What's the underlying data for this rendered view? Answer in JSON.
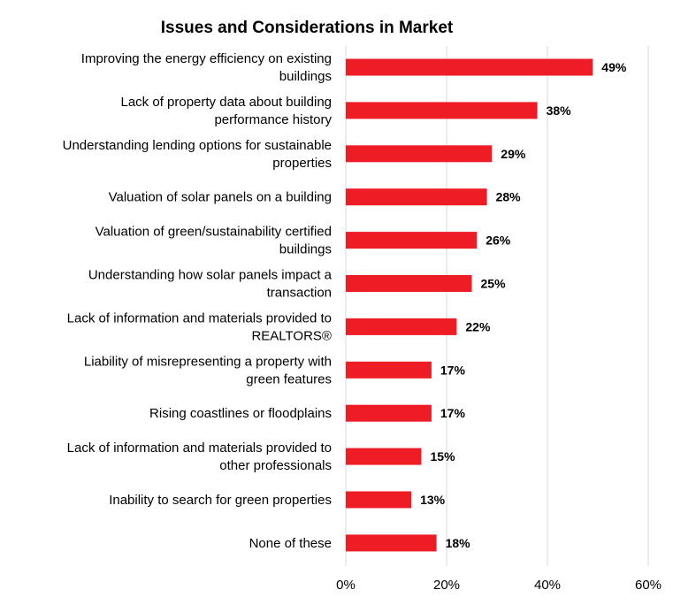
{
  "chart_data": {
    "type": "bar",
    "orientation": "horizontal",
    "title": "Issues and Considerations in Market",
    "xlabel": "",
    "ylabel": "",
    "categories": [
      [
        "Improving the energy efficiency on existing",
        "buildings"
      ],
      [
        "Lack of property data about building",
        "performance history"
      ],
      [
        "Understanding lending options for sustainable",
        "properties"
      ],
      [
        "Valuation of solar panels on a building"
      ],
      [
        "Valuation of green/sustainability certified",
        "buildings"
      ],
      [
        "Understanding how solar panels impact a",
        "transaction"
      ],
      [
        "Lack of information and materials provided to",
        "REALTORS®"
      ],
      [
        "Liability of misrepresenting a property with",
        "green features"
      ],
      [
        "Rising coastlines or floodplains"
      ],
      [
        "Lack of information and materials provided to",
        "other professionals"
      ],
      [
        "Inability to search for green properties"
      ],
      [
        "None of these"
      ]
    ],
    "values": [
      49,
      38,
      29,
      28,
      26,
      25,
      22,
      17,
      17,
      15,
      13,
      18
    ],
    "value_labels": [
      "49%",
      "38%",
      "29%",
      "28%",
      "26%",
      "25%",
      "22%",
      "17%",
      "17%",
      "15%",
      "13%",
      "18%"
    ],
    "xlim": [
      0,
      60
    ],
    "xticks": [
      0,
      20,
      40,
      60
    ],
    "xtick_labels": [
      "0%",
      "20%",
      "40%",
      "60%"
    ],
    "grid": "vertical",
    "legend": "none",
    "bar_color": "#ee1c25"
  }
}
